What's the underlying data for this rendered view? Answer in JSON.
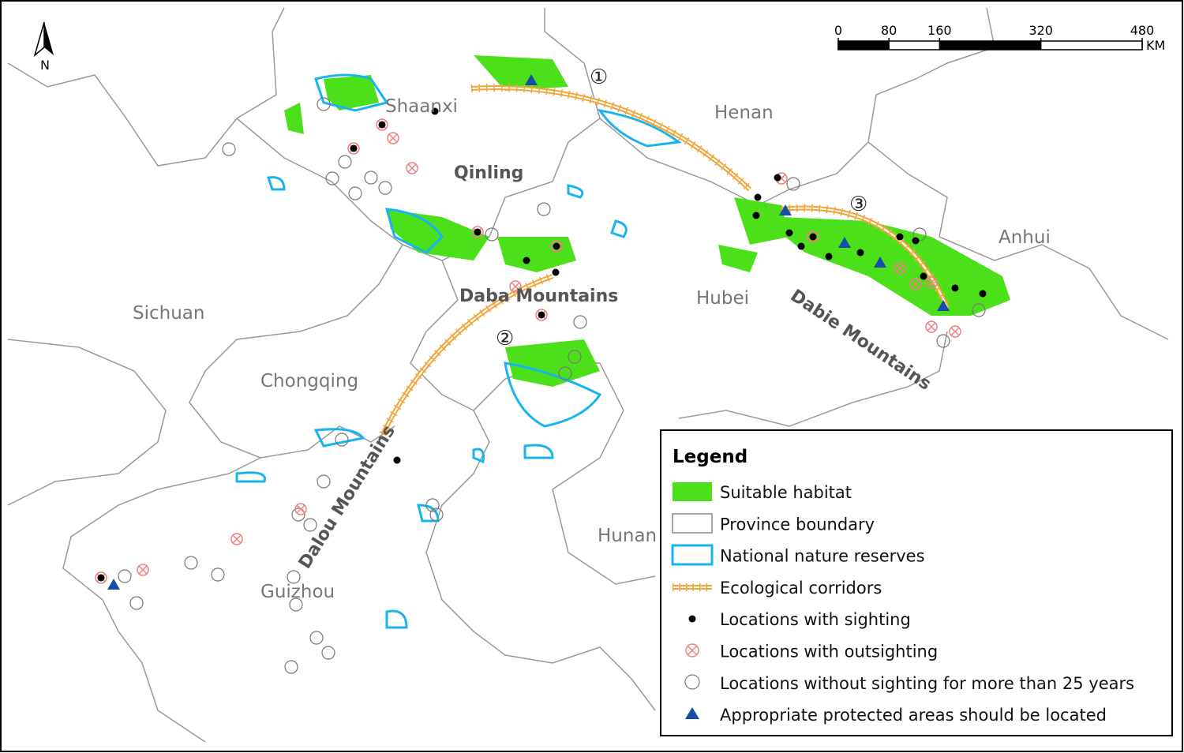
{
  "north_arrow": {
    "label": "N"
  },
  "scale_bar": {
    "ticks": [
      0,
      80,
      160,
      320,
      480
    ],
    "unit": "KM"
  },
  "provinces": [
    "Shaanxi",
    "Henan",
    "Sichuan",
    "Hubei",
    "Anhui",
    "Chongqing",
    "Hunan",
    "Guizhou"
  ],
  "regions": [
    "Qinling",
    "Daba Mountains",
    "Dabie Mountains",
    "Dalou Mountains"
  ],
  "corridors": [
    "①",
    "②",
    "③"
  ],
  "legend": {
    "title": "Legend",
    "items": [
      "Suitable habitat",
      "Province boundary",
      "National nature reserves",
      "Ecological corridors",
      "Locations with sighting",
      "Locations with outsighting",
      "Locations without sighting for more than 25 years",
      "Appropriate protected areas should be located"
    ]
  }
}
